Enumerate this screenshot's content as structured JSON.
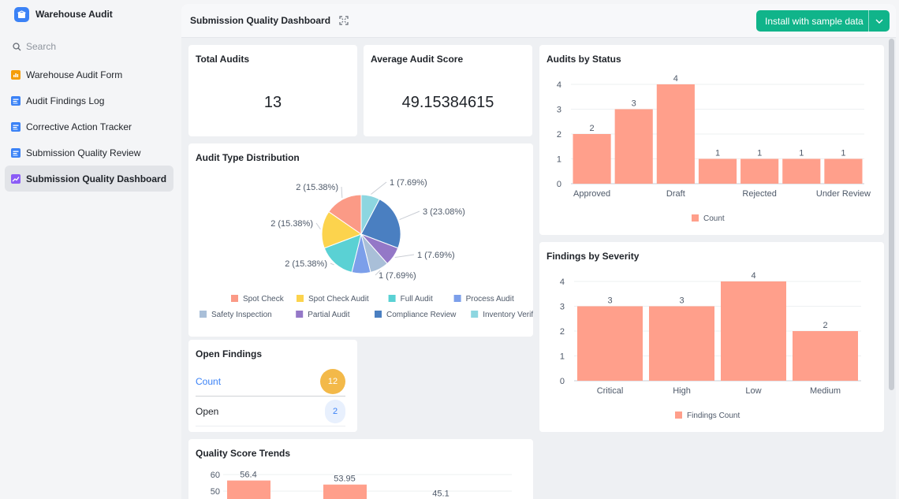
{
  "sidebar": {
    "app_title": "Warehouse Audit",
    "search_placeholder": "Search",
    "items": [
      {
        "label": "Warehouse Audit Form",
        "icon": "form-icon",
        "color": "#f59e0b"
      },
      {
        "label": "Audit Findings Log",
        "icon": "table-icon",
        "color": "#3b82f6"
      },
      {
        "label": "Corrective Action Tracker",
        "icon": "table-icon",
        "color": "#3b82f6"
      },
      {
        "label": "Submission Quality Review",
        "icon": "table-icon",
        "color": "#3b82f6"
      },
      {
        "label": "Submission Quality Dashboard",
        "icon": "dashboard-icon",
        "color": "#8b5cf6",
        "active": true
      }
    ]
  },
  "header": {
    "title": "Submission Quality Dashboard",
    "install_label": "Install with sample data"
  },
  "colors": {
    "accent": "#10b48a",
    "bar": "#ff9f8b"
  },
  "cards": {
    "total_audits": {
      "title": "Total Audits",
      "value": "13"
    },
    "average_score": {
      "title": "Average Audit Score",
      "value": "49.15384615"
    },
    "open_findings": {
      "title": "Open Findings",
      "rows": [
        {
          "label": "Count",
          "value": "12"
        },
        {
          "label": "Open",
          "value": "2"
        }
      ]
    }
  },
  "chart_data": [
    {
      "id": "status",
      "type": "bar",
      "title": "Audits by Status",
      "categories": [
        "Approved",
        "",
        "Draft",
        "",
        "Rejected",
        "",
        "Under Review"
      ],
      "values": [
        2,
        3,
        4,
        1,
        1,
        1,
        1
      ],
      "ylim": [
        0,
        4
      ],
      "yticks": [
        0,
        1,
        2,
        3,
        4
      ],
      "legend": "Count",
      "legend_position": "bottom",
      "grid": true
    },
    {
      "id": "severity",
      "type": "bar",
      "title": "Findings by Severity",
      "categories": [
        "Critical",
        "High",
        "Low",
        "Medium"
      ],
      "values": [
        3,
        3,
        4,
        2
      ],
      "ylim": [
        0,
        4
      ],
      "yticks": [
        0,
        1,
        2,
        3,
        4
      ],
      "legend": "Findings Count",
      "legend_position": "bottom",
      "grid": true
    },
    {
      "id": "audit_type",
      "type": "pie",
      "title": "Audit Type Distribution",
      "slices": [
        {
          "name": "Inventory Verification",
          "value": 1,
          "label": "1 (7.69%)",
          "color": "#8dd6e0"
        },
        {
          "name": "Compliance Review",
          "value": 3,
          "label": "3 (23.08%)",
          "color": "#4a7fc1"
        },
        {
          "name": "Partial Audit",
          "value": 1,
          "label": "1 (7.69%)",
          "color": "#9478c7"
        },
        {
          "name": "Safety Inspection",
          "value": 1,
          "label": "1 (7.69%)",
          "color": "#a9bfd8"
        },
        {
          "name": "Process Audit",
          "value": 1,
          "label": "",
          "color": "#7c9fea"
        },
        {
          "name": "Full Audit",
          "value": 2,
          "label": "2 (15.38%)",
          "color": "#5ad1d4"
        },
        {
          "name": "Spot Check Audit",
          "value": 2,
          "label": "2 (15.38%)",
          "color": "#fcd34d"
        },
        {
          "name": "Spot Check",
          "value": 2,
          "label": "2 (15.38%)",
          "color": "#fb9a86"
        }
      ],
      "legend": [
        "Spot Check",
        "Spot Check Audit",
        "Full Audit",
        "Process Audit",
        "Safety Inspection",
        "Partial Audit",
        "Compliance Review",
        "Inventory Verification"
      ],
      "legend_position": "bottom"
    },
    {
      "id": "quality_trends",
      "type": "bar",
      "title": "Quality Score Trends",
      "values": [
        56.4,
        53.95,
        45.1
      ],
      "yticks": [
        50,
        60
      ],
      "grid": true
    }
  ]
}
